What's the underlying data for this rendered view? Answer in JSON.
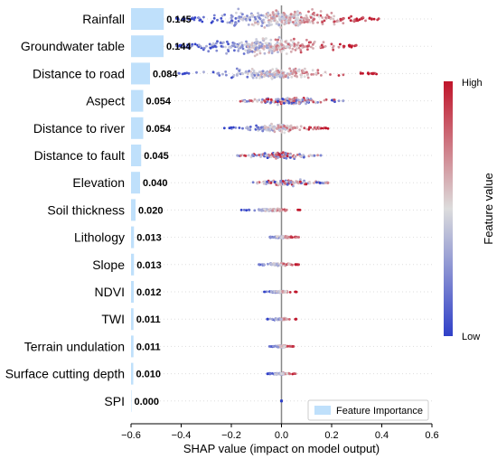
{
  "chart_data": {
    "type": "scatter",
    "subtype": "shap-beeswarm-with-importance-bars",
    "title": "",
    "xlabel": "SHAP value (impact on model output)",
    "xlim": [
      -0.6,
      0.6
    ],
    "xticks": [
      -0.6,
      -0.4,
      -0.2,
      0.0,
      0.2,
      0.4,
      0.6
    ],
    "features": [
      {
        "name": "Rainfall",
        "importance": "0.145",
        "imp": 0.145,
        "smin": -0.42,
        "smax": 0.39,
        "spread": 0.85
      },
      {
        "name": "Groundwater table",
        "importance": "0.144",
        "imp": 0.144,
        "smin": -0.42,
        "smax": 0.3,
        "spread": 0.85
      },
      {
        "name": "Distance to road",
        "importance": "0.084",
        "imp": 0.084,
        "smin": -0.41,
        "smax": 0.38,
        "spread": 0.75
      },
      {
        "name": "Aspect",
        "importance": "0.054",
        "imp": 0.054,
        "smin": -0.19,
        "smax": 0.26,
        "spread": 0.6
      },
      {
        "name": "Distance to river",
        "importance": "0.054",
        "imp": 0.054,
        "smin": -0.23,
        "smax": 0.19,
        "spread": 0.7
      },
      {
        "name": "Distance to fault",
        "importance": "0.045",
        "imp": 0.045,
        "smin": -0.18,
        "smax": 0.16,
        "spread": 0.6
      },
      {
        "name": "Elevation",
        "importance": "0.040",
        "imp": 0.04,
        "smin": -0.12,
        "smax": 0.19,
        "spread": 0.6
      },
      {
        "name": "Soil thickness",
        "importance": "0.020",
        "imp": 0.02,
        "smin": -0.16,
        "smax": 0.08,
        "spread": 0.35
      },
      {
        "name": "Lithology",
        "importance": "0.013",
        "imp": 0.013,
        "smin": -0.07,
        "smax": 0.07,
        "spread": 0.35
      },
      {
        "name": "Slope",
        "importance": "0.013",
        "imp": 0.013,
        "smin": -0.09,
        "smax": 0.07,
        "spread": 0.4
      },
      {
        "name": "NDVI",
        "importance": "0.012",
        "imp": 0.012,
        "smin": -0.07,
        "smax": 0.06,
        "spread": 0.3
      },
      {
        "name": "TWI",
        "importance": "0.011",
        "imp": 0.011,
        "smin": -0.06,
        "smax": 0.06,
        "spread": 0.3
      },
      {
        "name": "Terrain undulation",
        "importance": "0.011",
        "imp": 0.011,
        "smin": -0.05,
        "smax": 0.05,
        "spread": 0.3
      },
      {
        "name": "Surface cutting depth",
        "importance": "0.010",
        "imp": 0.01,
        "smin": -0.06,
        "smax": 0.06,
        "spread": 0.3
      },
      {
        "name": "SPI",
        "importance": "0.000",
        "imp": 0.0,
        "smin": 0.0,
        "smax": 0.0,
        "spread": 0.1
      }
    ],
    "colorbar": {
      "label": "Feature value",
      "high": "High",
      "low": "Low"
    },
    "legend": {
      "label": "Feature Importance",
      "placement": "bottom-right"
    },
    "colors": {
      "high": "#c0142a",
      "mid": "#dcdcdc",
      "low": "#3040c8",
      "bar": "#bfe0fb",
      "zero_line": "#888888"
    }
  }
}
